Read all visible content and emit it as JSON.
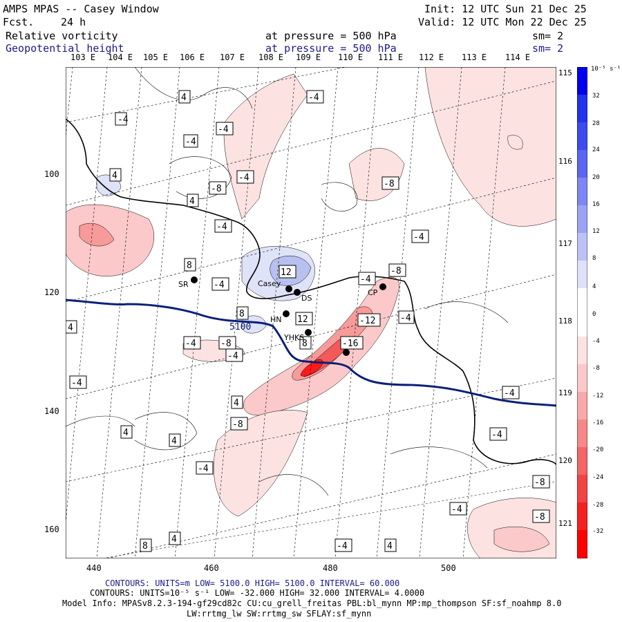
{
  "header": {
    "model": "AMPS MPAS -- Casey Window",
    "fcst_label": "Fcst.",
    "fcst_value": "24 h",
    "init": "Init: 12 UTC Sun 21 Dec 25",
    "valid": "Valid: 12 UTC Mon 22 Dec 25",
    "field1": "Relative vorticity",
    "field2": "Geopotential height",
    "level1": "at pressure =  500 hPa",
    "level2": "at pressure =  500 hPa",
    "sm1": "sm= 2",
    "sm2": "sm= 2"
  },
  "map": {
    "longitudes_top": [
      "103 E",
      "104 E",
      "105 E",
      "106 E",
      "107 E",
      "108 E",
      "109 E",
      "110 E",
      "111 E",
      "112 E",
      "113 E",
      "114 E"
    ],
    "longitudes_right": [
      "115 E",
      "116 E",
      "117 E",
      "118 E",
      "119 E",
      "120 E",
      "121 E"
    ],
    "x_ticks": [
      "440",
      "460",
      "480",
      "500"
    ],
    "y_ticks": [
      "100",
      "120",
      "140",
      "160"
    ],
    "contour_labels": [
      "4",
      "-4",
      "4",
      "-4",
      "-4",
      "4",
      "-4",
      "-8",
      "-4",
      "-8",
      "-4",
      "-4",
      "-8",
      "-4",
      "8",
      "-4",
      "12",
      "8",
      "12",
      "8",
      "-12",
      "-4",
      "-16",
      "-4",
      "-4",
      "-8",
      "-4",
      "4",
      "-8",
      "4",
      "4",
      "-4",
      "-4",
      "-4",
      "-8",
      "-4",
      "-8",
      "4",
      "4",
      "-4",
      "4",
      "8"
    ],
    "height_label": "5100",
    "stations": [
      "SR",
      "Casey",
      "DS",
      "CP",
      "HN",
      "YHKS"
    ],
    "colorbar_unit": "10⁻⁵ s⁻¹",
    "colorbar_labels": [
      "32",
      "28",
      "24",
      "20",
      "16",
      "12",
      "8",
      "4",
      "0",
      "-4",
      "-8",
      "-12",
      "-16",
      "-20",
      "-24",
      "-28",
      "-32"
    ]
  },
  "footer": {
    "contours1": "CONTOURS:  UNITS=m  LOW=  5100.0        HIGH=  5100.0        INTERVAL=   60.000",
    "contours2": "CONTOURS:  UNITS=10⁻⁵ s⁻¹  LOW= -32.000        HIGH=  32.000        INTERVAL=   4.0000",
    "model_info": "Model Info: MPASv8.2.3-194-gf29cd82c CU:cu_grell_freitas PBL:bl_mynn MP:mp_thompson SF:sf_noahmp 8.0",
    "model_info2": "LW:rrtmg_lw SW:rrtmg_sw SFLAY:sf_mynn"
  },
  "colors": {
    "neg_strong": "#ff1a1a",
    "pos_strong": "#1a1aff",
    "height_line": "#0a1f7a",
    "coast": "#000000"
  }
}
